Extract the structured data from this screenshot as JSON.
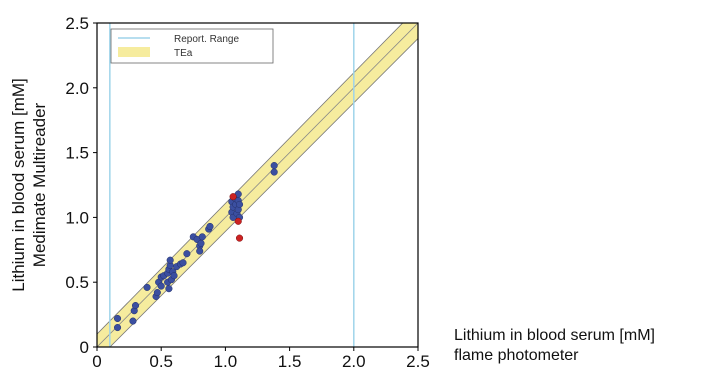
{
  "chart_data": {
    "type": "scatter",
    "xlabel_lines": [
      "Lithium in blood serum [mM]",
      "flame photometer"
    ],
    "ylabel_lines": [
      "Lithium in blood serum [mM]",
      "Medimate Multireader"
    ],
    "xlim": [
      0,
      2.5
    ],
    "ylim": [
      0,
      2.5
    ],
    "xticks": [
      "0",
      "0.5",
      "1.0",
      "1.5",
      "2.0",
      "2.5"
    ],
    "yticks": [
      "0",
      "0.5",
      "1.0",
      "1.5",
      "2.0",
      "2.5"
    ],
    "legend": {
      "placement": "top-left",
      "entries": [
        "Report. Range",
        "TEa"
      ]
    },
    "report_range": [
      0.1,
      2.0
    ],
    "tea_band": {
      "upper_points": [
        [
          0,
          0.1
        ],
        [
          2.5,
          2.62
        ]
      ],
      "lower_points": [
        [
          0,
          -0.1
        ],
        [
          2.5,
          2.38
        ]
      ]
    },
    "identity_line": [
      [
        0,
        0
      ],
      [
        2.5,
        2.5
      ]
    ],
    "colors": {
      "points": "#3b4fa0",
      "outliers": "#cc2222",
      "band": "#f6ec9e",
      "report_range": "#9fd4ea"
    },
    "points_blue": [
      [
        0.16,
        0.22
      ],
      [
        0.16,
        0.15
      ],
      [
        0.28,
        0.2
      ],
      [
        0.29,
        0.28
      ],
      [
        0.3,
        0.32
      ],
      [
        0.39,
        0.46
      ],
      [
        0.46,
        0.39
      ],
      [
        0.47,
        0.42
      ],
      [
        0.48,
        0.5
      ],
      [
        0.5,
        0.47
      ],
      [
        0.5,
        0.54
      ],
      [
        0.52,
        0.55
      ],
      [
        0.55,
        0.5
      ],
      [
        0.55,
        0.57
      ],
      [
        0.56,
        0.6
      ],
      [
        0.56,
        0.45
      ],
      [
        0.57,
        0.63
      ],
      [
        0.57,
        0.67
      ],
      [
        0.58,
        0.52
      ],
      [
        0.59,
        0.58
      ],
      [
        0.6,
        0.55
      ],
      [
        0.62,
        0.62
      ],
      [
        0.65,
        0.64
      ],
      [
        0.67,
        0.65
      ],
      [
        0.7,
        0.72
      ],
      [
        0.75,
        0.85
      ],
      [
        0.78,
        0.83
      ],
      [
        0.8,
        0.78
      ],
      [
        0.8,
        0.74
      ],
      [
        0.81,
        0.8
      ],
      [
        0.82,
        0.85
      ],
      [
        0.87,
        0.91
      ],
      [
        0.88,
        0.93
      ],
      [
        1.05,
        1.12
      ],
      [
        1.05,
        1.04
      ],
      [
        1.06,
        1.08
      ],
      [
        1.06,
        1.0
      ],
      [
        1.07,
        1.15
      ],
      [
        1.08,
        1.1
      ],
      [
        1.09,
        1.03
      ],
      [
        1.1,
        1.06
      ],
      [
        1.1,
        1.13
      ],
      [
        1.1,
        1.18
      ],
      [
        1.11,
        1.0
      ],
      [
        1.11,
        1.1
      ],
      [
        1.38,
        1.35
      ],
      [
        1.38,
        1.4
      ]
    ],
    "points_red": [
      [
        1.06,
        1.16
      ],
      [
        1.1,
        0.97
      ],
      [
        1.11,
        0.84
      ]
    ]
  }
}
